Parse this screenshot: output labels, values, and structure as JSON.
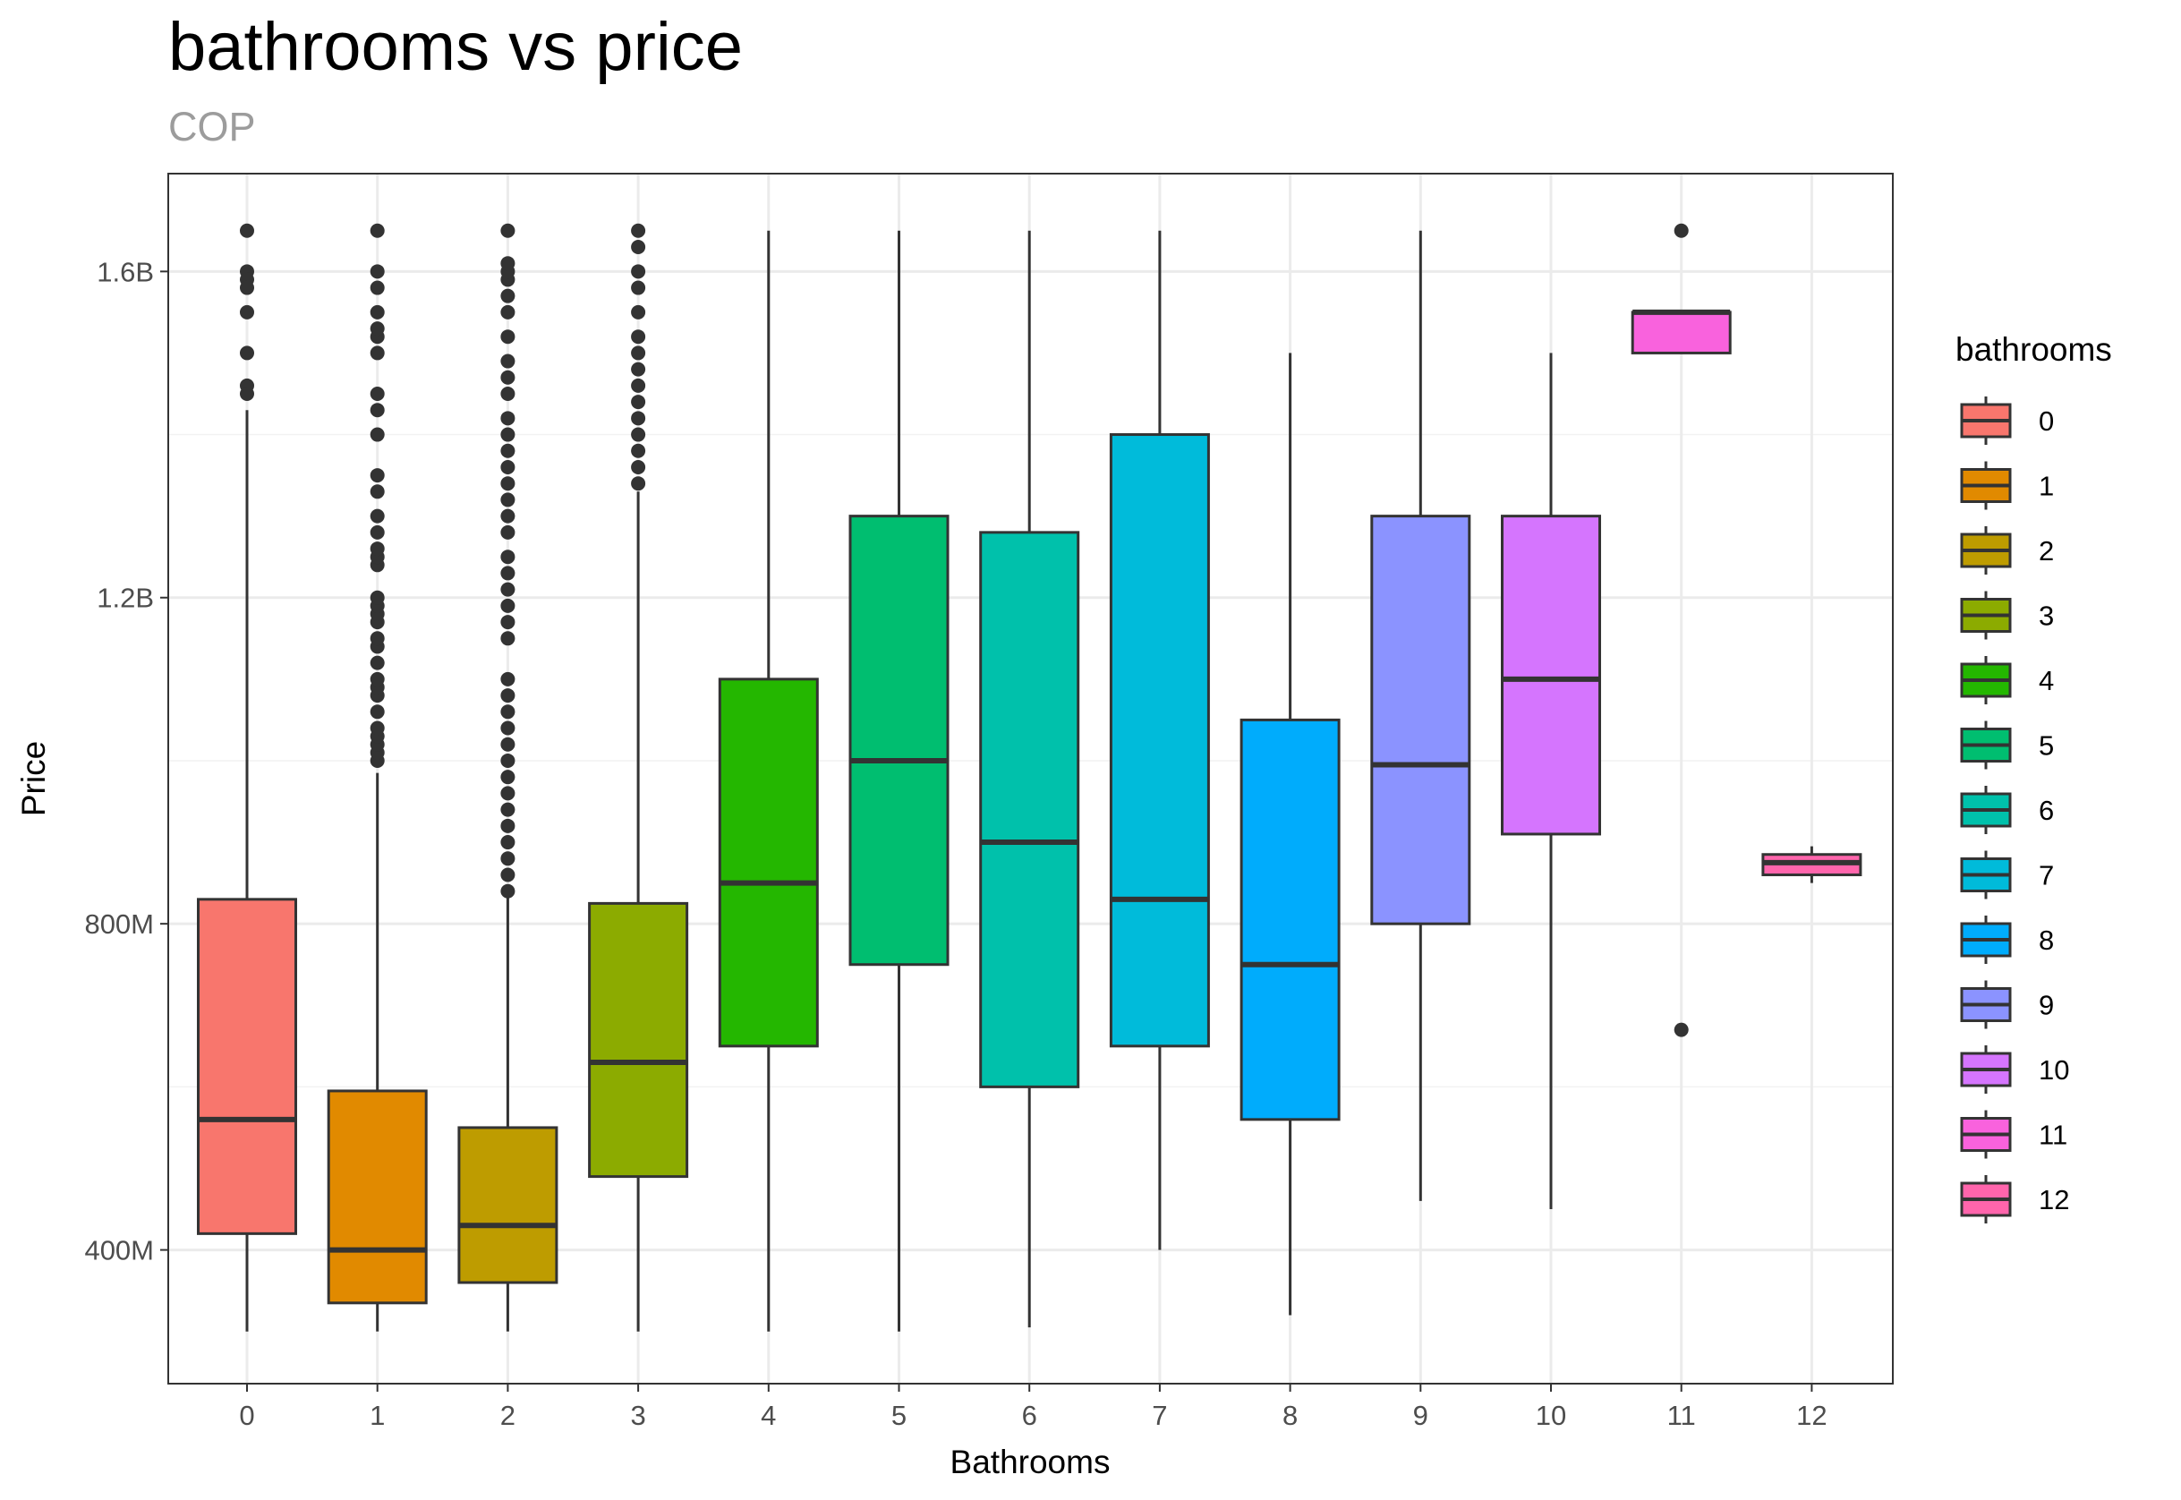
{
  "chart_data": {
    "type": "boxplot",
    "title": "bathrooms vs price",
    "subtitle": "COP",
    "xlabel": "Bathrooms",
    "ylabel": "Price",
    "ylim": [
      236000000,
      1720000000
    ],
    "y_ticks": [
      {
        "value": 400000000,
        "label": "400M"
      },
      {
        "value": 800000000,
        "label": "800M"
      },
      {
        "value": 1200000000,
        "label": "1.2B"
      },
      {
        "value": 1600000000,
        "label": "1.6B"
      }
    ],
    "grid": true,
    "legend": {
      "title": "bathrooms",
      "position": "right"
    },
    "categories": [
      "0",
      "1",
      "2",
      "3",
      "4",
      "5",
      "6",
      "7",
      "8",
      "9",
      "10",
      "11",
      "12"
    ],
    "boxes": [
      {
        "category": "0",
        "color": "#F8766D",
        "whisker_low": 300000000,
        "q1": 420000000,
        "median": 560000000,
        "q3": 830000000,
        "whisker_high": 1430000000,
        "outliers": [
          1650000000,
          1600000000,
          1590000000,
          1580000000,
          1550000000,
          1500000000,
          1460000000,
          1450000000
        ]
      },
      {
        "category": "1",
        "color": "#E18A00",
        "whisker_low": 300000000,
        "q1": 335000000,
        "median": 400000000,
        "q3": 595000000,
        "whisker_high": 985000000,
        "outliers": [
          1000000000,
          1010000000,
          1020000000,
          1030000000,
          1040000000,
          1060000000,
          1080000000,
          1090000000,
          1100000000,
          1120000000,
          1140000000,
          1150000000,
          1170000000,
          1180000000,
          1190000000,
          1200000000,
          1240000000,
          1250000000,
          1260000000,
          1280000000,
          1300000000,
          1330000000,
          1350000000,
          1400000000,
          1430000000,
          1450000000,
          1500000000,
          1520000000,
          1530000000,
          1550000000,
          1580000000,
          1600000000,
          1650000000
        ]
      },
      {
        "category": "2",
        "color": "#BE9C00",
        "whisker_low": 300000000,
        "q1": 360000000,
        "median": 430000000,
        "q3": 550000000,
        "whisker_high": 835000000,
        "outliers": [
          840000000,
          860000000,
          880000000,
          900000000,
          920000000,
          940000000,
          960000000,
          980000000,
          1000000000,
          1020000000,
          1040000000,
          1060000000,
          1080000000,
          1100000000,
          1150000000,
          1170000000,
          1190000000,
          1210000000,
          1230000000,
          1250000000,
          1280000000,
          1300000000,
          1320000000,
          1340000000,
          1360000000,
          1380000000,
          1400000000,
          1420000000,
          1450000000,
          1470000000,
          1490000000,
          1520000000,
          1550000000,
          1570000000,
          1590000000,
          1600000000,
          1610000000,
          1650000000
        ]
      },
      {
        "category": "3",
        "color": "#8CAB00",
        "whisker_low": 300000000,
        "q1": 490000000,
        "median": 630000000,
        "q3": 825000000,
        "whisker_high": 1330000000,
        "outliers": [
          1340000000,
          1360000000,
          1380000000,
          1400000000,
          1420000000,
          1440000000,
          1460000000,
          1480000000,
          1500000000,
          1520000000,
          1550000000,
          1580000000,
          1600000000,
          1630000000,
          1650000000
        ]
      },
      {
        "category": "4",
        "color": "#24B700",
        "whisker_low": 300000000,
        "q1": 650000000,
        "median": 850000000,
        "q3": 1100000000,
        "whisker_high": 1650000000,
        "outliers": []
      },
      {
        "category": "5",
        "color": "#00BE70",
        "whisker_low": 300000000,
        "q1": 750000000,
        "median": 1000000000,
        "q3": 1300000000,
        "whisker_high": 1650000000,
        "outliers": []
      },
      {
        "category": "6",
        "color": "#00C1AB",
        "whisker_low": 305000000,
        "q1": 600000000,
        "median": 900000000,
        "q3": 1280000000,
        "whisker_high": 1650000000,
        "outliers": []
      },
      {
        "category": "7",
        "color": "#00BBDA",
        "whisker_low": 400000000,
        "q1": 650000000,
        "median": 830000000,
        "q3": 1400000000,
        "whisker_high": 1650000000,
        "outliers": []
      },
      {
        "category": "8",
        "color": "#00ACFC",
        "whisker_low": 320000000,
        "q1": 560000000,
        "median": 750000000,
        "q3": 1050000000,
        "whisker_high": 1500000000,
        "outliers": []
      },
      {
        "category": "9",
        "color": "#8B93FF",
        "whisker_low": 460000000,
        "q1": 800000000,
        "median": 995000000,
        "q3": 1300000000,
        "whisker_high": 1650000000,
        "outliers": []
      },
      {
        "category": "10",
        "color": "#D575FE",
        "whisker_low": 450000000,
        "q1": 910000000,
        "median": 1100000000,
        "q3": 1300000000,
        "whisker_high": 1500000000,
        "outliers": []
      },
      {
        "category": "11",
        "color": "#F962DD",
        "whisker_low": 1500000000,
        "q1": 1500000000,
        "median": 1550000000,
        "q3": 1550000000,
        "whisker_high": 1550000000,
        "outliers": [
          1650000000,
          670000000
        ]
      },
      {
        "category": "12",
        "color": "#FF65AC",
        "whisker_low": 850000000,
        "q1": 860000000,
        "median": 875000000,
        "q3": 885000000,
        "whisker_high": 895000000,
        "outliers": []
      }
    ]
  }
}
